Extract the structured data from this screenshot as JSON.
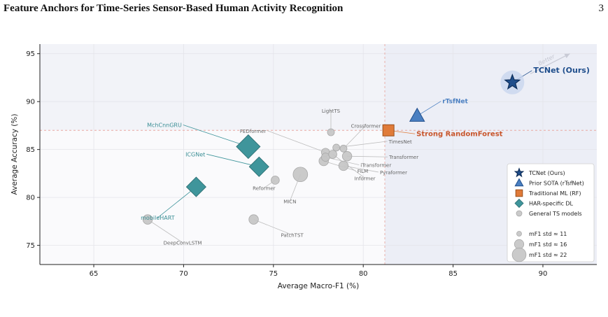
{
  "page": {
    "title": "Feature Anchors for Time-Series Sensor-Based Human Activity Recognition",
    "number": "3"
  },
  "colors": {
    "ours": "#1f4e8c",
    "sota": "#4a7fc1",
    "ml": "#e07b39",
    "har": "#3f959b",
    "general": "#c4c4c4",
    "ml_label": "#c8552b",
    "har_label": "#3a8e95",
    "gray_label": "#666666"
  },
  "chart_data": {
    "type": "scatter",
    "title": "",
    "xlabel": "Average Macro-F1 (%)",
    "ylabel": "Average Accuracy (%)",
    "xlim": [
      62,
      93
    ],
    "ylim": [
      73,
      96
    ],
    "xticks": [
      65,
      70,
      75,
      80,
      85,
      90
    ],
    "yticks": [
      75,
      80,
      85,
      90,
      95
    ],
    "grid": true,
    "legend_position": "lower-right",
    "threshold_lines": {
      "x": 81.2,
      "y": 87.0
    },
    "better_label": "Better",
    "groups": [
      {
        "name": "TCNet (Ours)",
        "marker": "star",
        "color": "#1f4e8c"
      },
      {
        "name": "Prior SOTA (rTsfNet)",
        "marker": "triangle",
        "color": "#4a7fc1"
      },
      {
        "name": "Traditional ML (RF)",
        "marker": "square",
        "color": "#e07b39"
      },
      {
        "name": "HAR-specific DL",
        "marker": "diamond",
        "color": "#3f959b"
      },
      {
        "name": "General TS models",
        "marker": "circle",
        "color": "#c4c4c4"
      }
    ],
    "size_legend": [
      {
        "label": "mF1 std ≈ 11",
        "std": 11
      },
      {
        "label": "mF1 std ≈ 16",
        "std": 16
      },
      {
        "label": "mF1 std ≈ 22",
        "std": 22
      }
    ],
    "points": [
      {
        "name": "TCNet (Ours)",
        "group": 0,
        "x": 88.3,
        "y": 92.0,
        "std": 12,
        "label": "TCNet (Ours)"
      },
      {
        "name": "rTsfNet",
        "group": 1,
        "x": 83.0,
        "y": 88.5,
        "std": 12,
        "label": "rTsfNet"
      },
      {
        "name": "Strong RandomForest",
        "group": 2,
        "x": 81.4,
        "y": 87.0,
        "std": 12,
        "label": "Strong RandomForest"
      },
      {
        "name": "MchCnnGRU",
        "group": 3,
        "x": 73.6,
        "y": 85.3,
        "std": 14,
        "label": "MchCnnGRU"
      },
      {
        "name": "ICGNet",
        "group": 3,
        "x": 74.2,
        "y": 83.2,
        "std": 12,
        "label": "ICGNet"
      },
      {
        "name": "mobileHART",
        "group": 3,
        "x": 70.7,
        "y": 81.1,
        "std": 12,
        "label": "mobileHART"
      },
      {
        "name": "LightTS",
        "group": 4,
        "x": 78.2,
        "y": 86.8,
        "std": 12,
        "label": "LightTS"
      },
      {
        "name": "Crossformer",
        "group": 4,
        "x": 78.9,
        "y": 85.1,
        "std": 12,
        "label": "Crossformer"
      },
      {
        "name": "FEDformer",
        "group": 4,
        "x": 77.9,
        "y": 84.7,
        "std": 13,
        "label": "FEDformer"
      },
      {
        "name": "TimesNet",
        "group": 4,
        "x": 78.5,
        "y": 85.2,
        "std": 12,
        "label": "TimesNet"
      },
      {
        "name": "Transformer",
        "group": 4,
        "x": 79.1,
        "y": 84.3,
        "std": 14,
        "label": "Transformer"
      },
      {
        "name": "iTransformer",
        "group": 4,
        "x": 77.9,
        "y": 84.2,
        "std": 13,
        "label": "iTransformer"
      },
      {
        "name": "FiLM",
        "group": 4,
        "x": 77.8,
        "y": 83.8,
        "std": 14,
        "label": "FiLM"
      },
      {
        "name": "Pyraformer",
        "group": 4,
        "x": 78.9,
        "y": 83.3,
        "std": 14,
        "label": "Pyraformer"
      },
      {
        "name": "Informer",
        "group": 4,
        "x": 78.3,
        "y": 84.5,
        "std": 13,
        "label": "Informer"
      },
      {
        "name": "MICN",
        "group": 4,
        "x": 76.5,
        "y": 82.4,
        "std": 18,
        "label": "MICN"
      },
      {
        "name": "Reformer",
        "group": 4,
        "x": 75.1,
        "y": 81.8,
        "std": 13,
        "label": "Reformer"
      },
      {
        "name": "DeepConvLSTM",
        "group": 4,
        "x": 68.0,
        "y": 77.7,
        "std": 14,
        "label": "DeepConvLSTM"
      },
      {
        "name": "PatchTST",
        "group": 4,
        "x": 73.9,
        "y": 77.7,
        "std": 14,
        "label": "PatchTST"
      }
    ]
  }
}
